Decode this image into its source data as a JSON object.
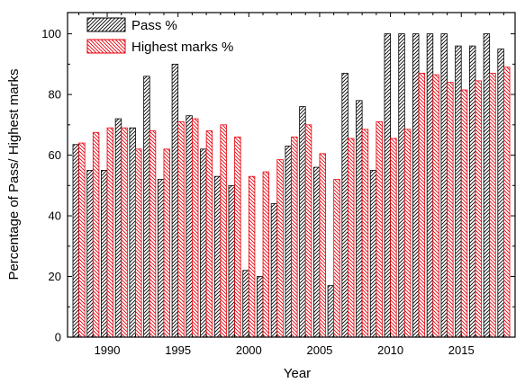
{
  "chart_data": {
    "type": "bar",
    "xlabel": "Year",
    "ylabel": "Percentage of Pass/ Highest marks",
    "ylim": [
      0,
      107
    ],
    "xlim": [
      1987.2,
      2018.8
    ],
    "x_ticks": [
      1990,
      1995,
      2000,
      2005,
      2010,
      2015
    ],
    "y_ticks": [
      0,
      20,
      40,
      60,
      80,
      100
    ],
    "legend_position": "top-left",
    "grid": false,
    "categories": [
      1988,
      1989,
      1990,
      1991,
      1992,
      1993,
      1994,
      1995,
      1996,
      1997,
      1998,
      1999,
      2000,
      2001,
      2002,
      2003,
      2004,
      2005,
      2006,
      2007,
      2008,
      2009,
      2010,
      2011,
      2012,
      2013,
      2014,
      2015,
      2016,
      2017,
      2018
    ],
    "series": [
      {
        "name": "Pass %",
        "color": "#000000",
        "pattern": "hatch-forward",
        "values": [
          63.5,
          55,
          55,
          72,
          69,
          86,
          52,
          90,
          73,
          62,
          53,
          50,
          22,
          20,
          44,
          63,
          76,
          56,
          17,
          87,
          78,
          55,
          100,
          100,
          100,
          100,
          100,
          96,
          96,
          100,
          95
        ]
      },
      {
        "name": "Highest marks %",
        "color": "#e8000b",
        "pattern": "hatch-backward",
        "values": [
          64,
          67.5,
          69,
          69,
          62,
          68,
          62,
          71,
          72,
          68,
          70,
          66,
          53,
          54.5,
          58.5,
          66,
          70,
          60.5,
          52,
          65.5,
          68.5,
          71,
          65.5,
          68.5,
          87,
          86.5,
          84,
          81.5,
          84.5,
          87,
          89
        ]
      }
    ]
  }
}
